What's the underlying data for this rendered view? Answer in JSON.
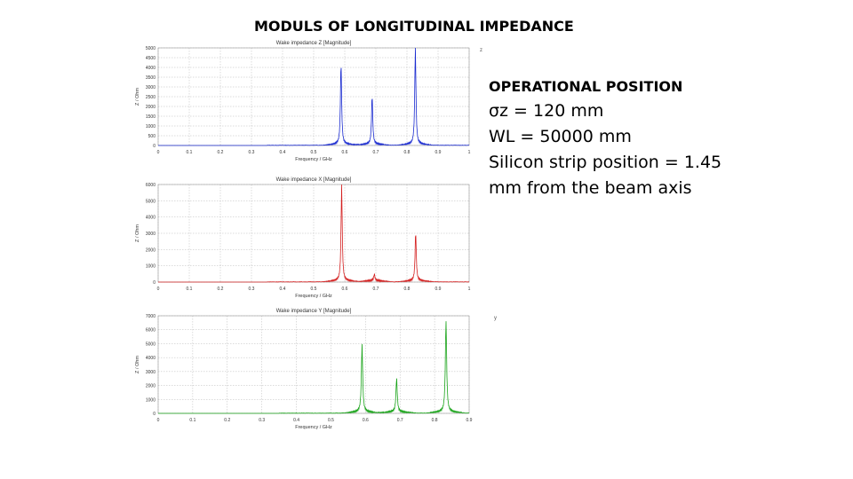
{
  "slide": {
    "title": "MODULS OF LONGITUDINAL IMPEDANCE",
    "info_heading": "OPERATIONAL POSITION",
    "info_lines": [
      "σz = 120 mm",
      "WL = 50000 mm",
      "Silicon strip position = 1.45 mm from the beam axis"
    ]
  },
  "chart_data": [
    {
      "type": "line",
      "title": "Wake impedance Z [Magnitude]",
      "xlabel": "Frequency / GHz",
      "ylabel": "Z / Ohm",
      "xlim": [
        0,
        1
      ],
      "ylim": [
        0,
        5000
      ],
      "xticks": [
        "0",
        "0.1",
        "0.2",
        "0.3",
        "0.4",
        "0.5",
        "0.6",
        "0.7",
        "0.8",
        "0.9",
        "1"
      ],
      "yticks": [
        "0",
        "500",
        "1000",
        "1500",
        "2000",
        "2500",
        "3000",
        "3500",
        "4000",
        "4500",
        "5000"
      ],
      "color": "#1a2bd0",
      "legend": "z",
      "peaks": [
        {
          "x": 0.588,
          "y": 4200
        },
        {
          "x": 0.688,
          "y": 2500
        },
        {
          "x": 0.827,
          "y": 5000
        }
      ],
      "noise": 120
    },
    {
      "type": "line",
      "title": "Wake impedance X [Magnitude]",
      "xlabel": "Frequency / GHz",
      "ylabel": "Z / Ohm",
      "xlim": [
        0,
        1
      ],
      "ylim": [
        0,
        6000
      ],
      "xticks": [
        "0",
        "0.1",
        "0.2",
        "0.3",
        "0.4",
        "0.5",
        "0.6",
        "0.7",
        "0.8",
        "0.9",
        "1"
      ],
      "yticks": [
        "0",
        "1000",
        "2000",
        "3000",
        "4000",
        "5000",
        "6000"
      ],
      "color": "#d42020",
      "legend": "",
      "peaks": [
        {
          "x": 0.59,
          "y": 5900
        },
        {
          "x": 0.828,
          "y": 3000
        },
        {
          "x": 0.695,
          "y": 400
        }
      ],
      "noise": 150
    },
    {
      "type": "line",
      "title": "Wake impedance Y [Magnitude]",
      "xlabel": "Frequency / GHz",
      "ylabel": "Z / Ohm",
      "xlim": [
        0,
        0.9
      ],
      "ylim": [
        0,
        7000
      ],
      "xticks": [
        "0",
        "0.1",
        "0.2",
        "0.3",
        "0.4",
        "0.5",
        "0.6",
        "0.7",
        "0.8",
        "0.9"
      ],
      "yticks": [
        "0",
        "1000",
        "2000",
        "3000",
        "4000",
        "5000",
        "6000",
        "7000"
      ],
      "color": "#1aa41a",
      "legend": "y",
      "peaks": [
        {
          "x": 0.59,
          "y": 4800
        },
        {
          "x": 0.69,
          "y": 2400
        },
        {
          "x": 0.833,
          "y": 6600
        }
      ],
      "noise": 180
    }
  ]
}
